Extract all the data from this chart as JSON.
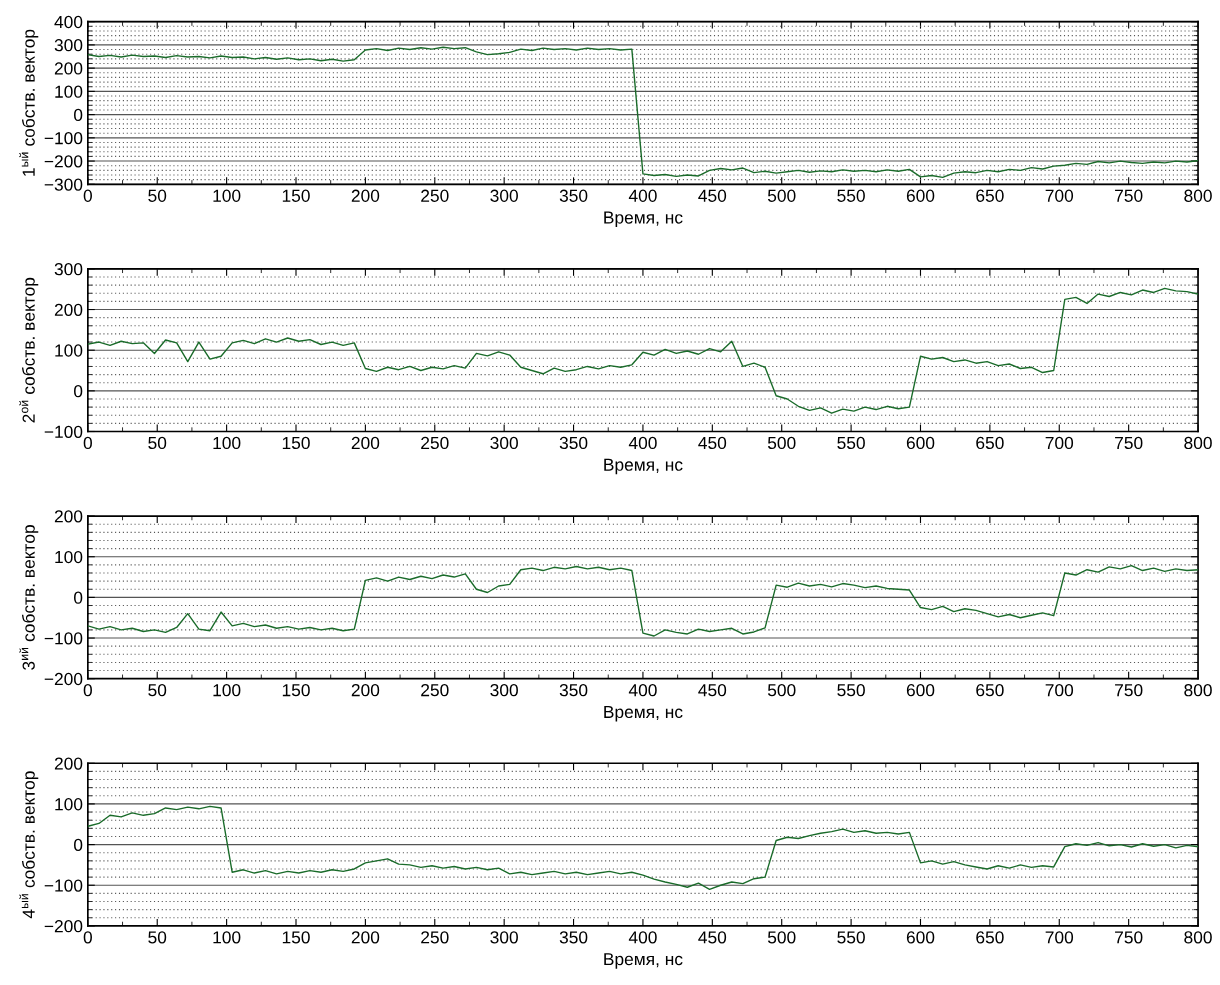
{
  "chart_data": [
    {
      "type": "line",
      "xlabel": "Время, нс",
      "ylabel": "1$^{ый}$ собств. вектор",
      "grid": true,
      "line_style": "solid",
      "marker": "none",
      "xlim": [
        0,
        800
      ],
      "ylim": [
        -300,
        400
      ],
      "xticks": [
        0,
        {
          "value": 25,
          "label": null
        },
        50,
        {
          "value": 75,
          "label": null
        },
        100,
        {
          "value": 125,
          "label": null
        },
        150,
        {
          "value": 175,
          "label": null
        },
        200,
        {
          "value": 225,
          "label": null
        },
        250,
        {
          "value": 275,
          "label": null
        },
        300,
        {
          "value": 325,
          "label": null
        },
        350,
        {
          "value": 375,
          "label": null
        },
        400,
        {
          "value": 425,
          "label": null
        },
        450,
        {
          "value": 475,
          "label": null
        },
        500,
        {
          "value": 525,
          "label": null
        },
        550,
        {
          "value": 575,
          "label": null
        },
        600,
        {
          "value": 625,
          "label": null
        },
        650,
        {
          "value": 675,
          "label": null
        },
        700,
        {
          "value": 725,
          "label": null
        },
        750,
        {
          "value": 775,
          "label": null
        },
        800
      ],
      "yticks": [
        -300,
        {
          "value": -280,
          "label": null
        },
        {
          "value": -260,
          "label": null
        },
        {
          "value": -240,
          "label": null
        },
        {
          "value": -220,
          "label": null
        },
        -200,
        {
          "value": -180,
          "label": null
        },
        {
          "value": -160,
          "label": null
        },
        {
          "value": -140,
          "label": null
        },
        {
          "value": -120,
          "label": null
        },
        -100,
        {
          "value": -80,
          "label": null
        },
        {
          "value": -60,
          "label": null
        },
        {
          "value": -40,
          "label": null
        },
        {
          "value": -20,
          "label": null
        },
        0,
        {
          "value": 20,
          "label": null
        },
        {
          "value": 40,
          "label": null
        },
        {
          "value": 60,
          "label": null
        },
        {
          "value": 80,
          "label": null
        },
        100,
        {
          "value": 120,
          "label": null
        },
        {
          "value": 140,
          "label": null
        },
        {
          "value": 160,
          "label": null
        },
        {
          "value": 180,
          "label": null
        },
        200,
        {
          "value": 220,
          "label": null
        },
        {
          "value": 240,
          "label": null
        },
        {
          "value": 260,
          "label": null
        },
        {
          "value": 280,
          "label": null
        },
        300,
        {
          "value": 320,
          "label": null
        },
        {
          "value": 340,
          "label": null
        },
        {
          "value": 360,
          "label": null
        },
        {
          "value": 380,
          "label": null
        },
        400
      ],
      "series": [
        {
          "color": "#1a6b2a",
          "x": [
            0,
            8,
            16,
            24,
            32,
            40,
            48,
            56,
            64,
            72,
            80,
            88,
            96,
            104,
            112,
            120,
            128,
            136,
            144,
            152,
            160,
            168,
            176,
            184,
            192,
            200,
            208,
            216,
            224,
            232,
            240,
            248,
            256,
            264,
            272,
            280,
            288,
            296,
            304,
            312,
            320,
            328,
            336,
            344,
            352,
            360,
            368,
            376,
            384,
            392,
            400,
            408,
            416,
            424,
            432,
            440,
            448,
            456,
            464,
            472,
            480,
            488,
            496,
            504,
            512,
            520,
            528,
            536,
            544,
            552,
            560,
            568,
            576,
            584,
            592,
            600,
            608,
            616,
            624,
            632,
            640,
            648,
            656,
            664,
            672,
            680,
            688,
            696,
            704,
            712,
            720,
            728,
            736,
            744,
            752,
            760,
            768,
            776,
            784,
            792,
            800
          ],
          "values": [
            258,
            250,
            255,
            248,
            256,
            250,
            252,
            246,
            254,
            248,
            250,
            244,
            252,
            246,
            248,
            240,
            246,
            238,
            244,
            236,
            240,
            232,
            238,
            230,
            236,
            278,
            284,
            276,
            286,
            280,
            288,
            282,
            290,
            284,
            288,
            270,
            258,
            262,
            268,
            282,
            276,
            286,
            280,
            284,
            278,
            286,
            280,
            284,
            278,
            282,
            -255,
            -262,
            -258,
            -266,
            -260,
            -264,
            -240,
            -232,
            -238,
            -230,
            -250,
            -244,
            -252,
            -246,
            -240,
            -248,
            -242,
            -246,
            -238,
            -244,
            -240,
            -246,
            -238,
            -244,
            -236,
            -268,
            -262,
            -270,
            -252,
            -246,
            -250,
            -240,
            -246,
            -236,
            -240,
            -228,
            -234,
            -222,
            -218,
            -210,
            -214,
            -202,
            -208,
            -200,
            -206,
            -210,
            -204,
            -208,
            -200,
            -204,
            -198
          ]
        }
      ]
    },
    {
      "type": "line",
      "xlabel": "Время, нс",
      "ylabel": "2$^{ой}$ собств. вектор",
      "grid": true,
      "line_style": "solid",
      "marker": "none",
      "xlim": [
        0,
        800
      ],
      "ylim": [
        -100,
        300
      ],
      "xticks": [
        0,
        {
          "value": 25,
          "label": null
        },
        50,
        {
          "value": 75,
          "label": null
        },
        100,
        {
          "value": 125,
          "label": null
        },
        150,
        {
          "value": 175,
          "label": null
        },
        200,
        {
          "value": 225,
          "label": null
        },
        250,
        {
          "value": 275,
          "label": null
        },
        300,
        {
          "value": 325,
          "label": null
        },
        350,
        {
          "value": 375,
          "label": null
        },
        400,
        {
          "value": 425,
          "label": null
        },
        450,
        {
          "value": 475,
          "label": null
        },
        500,
        {
          "value": 525,
          "label": null
        },
        550,
        {
          "value": 575,
          "label": null
        },
        600,
        {
          "value": 625,
          "label": null
        },
        650,
        {
          "value": 675,
          "label": null
        },
        700,
        {
          "value": 725,
          "label": null
        },
        750,
        {
          "value": 775,
          "label": null
        },
        800
      ],
      "yticks": [
        -100,
        {
          "value": -80,
          "label": null
        },
        {
          "value": -60,
          "label": null
        },
        {
          "value": -40,
          "label": null
        },
        {
          "value": -20,
          "label": null
        },
        0,
        {
          "value": 20,
          "label": null
        },
        {
          "value": 40,
          "label": null
        },
        {
          "value": 60,
          "label": null
        },
        {
          "value": 80,
          "label": null
        },
        100,
        {
          "value": 120,
          "label": null
        },
        {
          "value": 140,
          "label": null
        },
        {
          "value": 160,
          "label": null
        },
        {
          "value": 180,
          "label": null
        },
        200,
        {
          "value": 220,
          "label": null
        },
        {
          "value": 240,
          "label": null
        },
        {
          "value": 260,
          "label": null
        },
        {
          "value": 280,
          "label": null
        },
        300
      ],
      "series": [
        {
          "color": "#1a6b2a",
          "x": [
            0,
            8,
            16,
            24,
            32,
            40,
            48,
            56,
            64,
            72,
            80,
            88,
            96,
            104,
            112,
            120,
            128,
            136,
            144,
            152,
            160,
            168,
            176,
            184,
            192,
            200,
            208,
            216,
            224,
            232,
            240,
            248,
            256,
            264,
            272,
            280,
            288,
            296,
            304,
            312,
            320,
            328,
            336,
            344,
            352,
            360,
            368,
            376,
            384,
            392,
            400,
            408,
            416,
            424,
            432,
            440,
            448,
            456,
            464,
            472,
            480,
            488,
            496,
            504,
            512,
            520,
            528,
            536,
            544,
            552,
            560,
            568,
            576,
            584,
            592,
            600,
            608,
            616,
            624,
            632,
            640,
            648,
            656,
            664,
            672,
            680,
            688,
            696,
            704,
            712,
            720,
            728,
            736,
            744,
            752,
            760,
            768,
            776,
            784,
            792,
            800
          ],
          "values": [
            115,
            120,
            112,
            122,
            116,
            118,
            92,
            125,
            118,
            72,
            120,
            78,
            85,
            118,
            124,
            116,
            128,
            120,
            130,
            122,
            126,
            114,
            120,
            112,
            118,
            55,
            48,
            58,
            52,
            60,
            50,
            58,
            54,
            62,
            56,
            92,
            86,
            96,
            88,
            58,
            50,
            42,
            56,
            48,
            52,
            60,
            54,
            62,
            58,
            64,
            95,
            88,
            102,
            92,
            98,
            90,
            104,
            96,
            122,
            60,
            68,
            58,
            -12,
            -20,
            -38,
            -48,
            -42,
            -55,
            -45,
            -50,
            -40,
            -46,
            -38,
            -44,
            -40,
            85,
            78,
            82,
            72,
            76,
            68,
            72,
            62,
            66,
            55,
            58,
            45,
            50,
            225,
            230,
            215,
            238,
            232,
            242,
            236,
            248,
            242,
            252,
            246,
            244,
            238
          ]
        }
      ]
    },
    {
      "type": "line",
      "xlabel": "Время, нс",
      "ylabel": "3$^{ий}$ собств. вектор",
      "grid": true,
      "line_style": "solid",
      "marker": "none",
      "xlim": [
        0,
        800
      ],
      "ylim": [
        -200,
        200
      ],
      "xticks": [
        0,
        {
          "value": 25,
          "label": null
        },
        50,
        {
          "value": 75,
          "label": null
        },
        100,
        {
          "value": 125,
          "label": null
        },
        150,
        {
          "value": 175,
          "label": null
        },
        200,
        {
          "value": 225,
          "label": null
        },
        250,
        {
          "value": 275,
          "label": null
        },
        300,
        {
          "value": 325,
          "label": null
        },
        350,
        {
          "value": 375,
          "label": null
        },
        400,
        {
          "value": 425,
          "label": null
        },
        450,
        {
          "value": 475,
          "label": null
        },
        500,
        {
          "value": 525,
          "label": null
        },
        550,
        {
          "value": 575,
          "label": null
        },
        600,
        {
          "value": 625,
          "label": null
        },
        650,
        {
          "value": 675,
          "label": null
        },
        700,
        {
          "value": 725,
          "label": null
        },
        750,
        {
          "value": 775,
          "label": null
        },
        800
      ],
      "yticks": [
        -200,
        {
          "value": -180,
          "label": null
        },
        {
          "value": -160,
          "label": null
        },
        {
          "value": -140,
          "label": null
        },
        {
          "value": -120,
          "label": null
        },
        -100,
        {
          "value": -80,
          "label": null
        },
        {
          "value": -60,
          "label": null
        },
        {
          "value": -40,
          "label": null
        },
        {
          "value": -20,
          "label": null
        },
        0,
        {
          "value": 20,
          "label": null
        },
        {
          "value": 40,
          "label": null
        },
        {
          "value": 60,
          "label": null
        },
        {
          "value": 80,
          "label": null
        },
        100,
        {
          "value": 120,
          "label": null
        },
        {
          "value": 140,
          "label": null
        },
        {
          "value": 160,
          "label": null
        },
        {
          "value": 180,
          "label": null
        },
        200
      ],
      "series": [
        {
          "color": "#1a6b2a",
          "x": [
            0,
            8,
            16,
            24,
            32,
            40,
            48,
            56,
            64,
            72,
            80,
            88,
            96,
            104,
            112,
            120,
            128,
            136,
            144,
            152,
            160,
            168,
            176,
            184,
            192,
            200,
            208,
            216,
            224,
            232,
            240,
            248,
            256,
            264,
            272,
            280,
            288,
            296,
            304,
            312,
            320,
            328,
            336,
            344,
            352,
            360,
            368,
            376,
            384,
            392,
            400,
            408,
            416,
            424,
            432,
            440,
            448,
            456,
            464,
            472,
            480,
            488,
            496,
            504,
            512,
            520,
            528,
            536,
            544,
            552,
            560,
            568,
            576,
            584,
            592,
            600,
            608,
            616,
            624,
            632,
            640,
            648,
            656,
            664,
            672,
            680,
            688,
            696,
            704,
            712,
            720,
            728,
            736,
            744,
            752,
            760,
            768,
            776,
            784,
            792,
            800
          ],
          "values": [
            -70,
            -78,
            -72,
            -80,
            -76,
            -84,
            -80,
            -86,
            -74,
            -40,
            -78,
            -82,
            -36,
            -70,
            -64,
            -72,
            -68,
            -76,
            -72,
            -78,
            -74,
            -80,
            -76,
            -82,
            -78,
            42,
            48,
            40,
            50,
            44,
            52,
            46,
            55,
            50,
            58,
            20,
            12,
            28,
            32,
            68,
            72,
            66,
            74,
            70,
            76,
            70,
            74,
            68,
            72,
            66,
            -88,
            -95,
            -80,
            -86,
            -90,
            -78,
            -84,
            -80,
            -76,
            -90,
            -85,
            -75,
            30,
            25,
            35,
            28,
            32,
            26,
            34,
            30,
            24,
            28,
            22,
            20,
            18,
            -25,
            -30,
            -22,
            -35,
            -28,
            -32,
            -40,
            -48,
            -42,
            -50,
            -44,
            -38,
            -45,
            60,
            55,
            68,
            62,
            75,
            70,
            78,
            66,
            72,
            64,
            70,
            66,
            68
          ]
        }
      ]
    },
    {
      "type": "line",
      "xlabel": "Время, нс",
      "ylabel": "4$^{ый}$ собств. вектор",
      "grid": true,
      "line_style": "solid",
      "marker": "none",
      "xlim": [
        0,
        800
      ],
      "ylim": [
        -200,
        200
      ],
      "xticks": [
        0,
        {
          "value": 25,
          "label": null
        },
        50,
        {
          "value": 75,
          "label": null
        },
        100,
        {
          "value": 125,
          "label": null
        },
        150,
        {
          "value": 175,
          "label": null
        },
        200,
        {
          "value": 225,
          "label": null
        },
        250,
        {
          "value": 275,
          "label": null
        },
        300,
        {
          "value": 325,
          "label": null
        },
        350,
        {
          "value": 375,
          "label": null
        },
        400,
        {
          "value": 425,
          "label": null
        },
        450,
        {
          "value": 475,
          "label": null
        },
        500,
        {
          "value": 525,
          "label": null
        },
        550,
        {
          "value": 575,
          "label": null
        },
        600,
        {
          "value": 625,
          "label": null
        },
        650,
        {
          "value": 675,
          "label": null
        },
        700,
        {
          "value": 725,
          "label": null
        },
        750,
        {
          "value": 775,
          "label": null
        },
        800
      ],
      "yticks": [
        -200,
        {
          "value": -180,
          "label": null
        },
        {
          "value": -160,
          "label": null
        },
        {
          "value": -140,
          "label": null
        },
        {
          "value": -120,
          "label": null
        },
        -100,
        {
          "value": -80,
          "label": null
        },
        {
          "value": -60,
          "label": null
        },
        {
          "value": -40,
          "label": null
        },
        {
          "value": -20,
          "label": null
        },
        0,
        {
          "value": 20,
          "label": null
        },
        {
          "value": 40,
          "label": null
        },
        {
          "value": 60,
          "label": null
        },
        {
          "value": 80,
          "label": null
        },
        100,
        {
          "value": 120,
          "label": null
        },
        {
          "value": 140,
          "label": null
        },
        {
          "value": 160,
          "label": null
        },
        {
          "value": 180,
          "label": null
        },
        200
      ],
      "series": [
        {
          "color": "#1a6b2a",
          "x": [
            0,
            8,
            16,
            24,
            32,
            40,
            48,
            56,
            64,
            72,
            80,
            88,
            96,
            104,
            112,
            120,
            128,
            136,
            144,
            152,
            160,
            168,
            176,
            184,
            192,
            200,
            208,
            216,
            224,
            232,
            240,
            248,
            256,
            264,
            272,
            280,
            288,
            296,
            304,
            312,
            320,
            328,
            336,
            344,
            352,
            360,
            368,
            376,
            384,
            392,
            400,
            408,
            416,
            424,
            432,
            440,
            448,
            456,
            464,
            472,
            480,
            488,
            496,
            504,
            512,
            520,
            528,
            536,
            544,
            552,
            560,
            568,
            576,
            584,
            592,
            600,
            608,
            616,
            624,
            632,
            640,
            648,
            656,
            664,
            672,
            680,
            688,
            696,
            704,
            712,
            720,
            728,
            736,
            744,
            752,
            760,
            768,
            776,
            784,
            792,
            800
          ],
          "values": [
            45,
            52,
            72,
            68,
            78,
            72,
            76,
            90,
            86,
            92,
            88,
            94,
            90,
            -68,
            -62,
            -70,
            -64,
            -72,
            -66,
            -70,
            -64,
            -68,
            -62,
            -66,
            -60,
            -45,
            -40,
            -35,
            -48,
            -50,
            -56,
            -52,
            -58,
            -54,
            -60,
            -56,
            -62,
            -58,
            -72,
            -68,
            -74,
            -70,
            -66,
            -72,
            -68,
            -74,
            -70,
            -66,
            -72,
            -68,
            -75,
            -85,
            -92,
            -98,
            -105,
            -95,
            -110,
            -100,
            -92,
            -96,
            -84,
            -80,
            10,
            18,
            15,
            22,
            28,
            32,
            38,
            30,
            34,
            28,
            30,
            26,
            30,
            -45,
            -40,
            -48,
            -42,
            -50,
            -55,
            -60,
            -52,
            -58,
            -50,
            -56,
            -52,
            -55,
            -5,
            2,
            -2,
            5,
            -3,
            0,
            -6,
            2,
            -4,
            0,
            -8,
            -2,
            -5
          ]
        }
      ]
    }
  ]
}
